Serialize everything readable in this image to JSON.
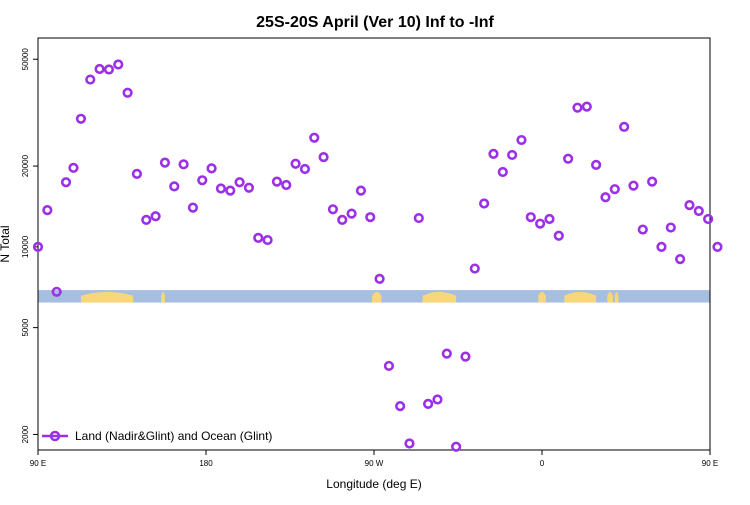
{
  "chart_data": {
    "type": "scatter",
    "title": "25S-20S April (Ver 10)   Inf to -Inf",
    "xlabel": "Longitude (deg E)",
    "ylabel": "N Total",
    "x_axis": {
      "range": [
        90,
        450
      ],
      "ticks": [
        {
          "value": 90,
          "label": "90 E"
        },
        {
          "value": 180,
          "label": "180"
        },
        {
          "value": 270,
          "label": "90 W"
        },
        {
          "value": 360,
          "label": "0"
        },
        {
          "value": 450,
          "label": "90 E"
        },
        {
          "value": 540,
          "label": "180"
        }
      ]
    },
    "y_axis": {
      "scale": "log",
      "range": [
        1750,
        60000
      ],
      "ticks": [
        {
          "value": 2000,
          "label": "2000"
        },
        {
          "value": 5000,
          "label": "5000"
        },
        {
          "value": 10000,
          "label": "10000"
        },
        {
          "value": 20000,
          "label": "20000"
        },
        {
          "value": 50000,
          "label": "50000"
        }
      ]
    },
    "grid": false,
    "legend": {
      "position": "bottom-left",
      "entries": [
        "Land (Nadir&Glint) and Ocean (Glint)"
      ]
    },
    "colors": {
      "points": "#9b30e8",
      "land": "#f8d67a",
      "ocean": "#a6bedf"
    },
    "land_ocean_strip": {
      "y_range": [
        6200,
        6900
      ],
      "land_segments": [
        [
          113,
          141
        ],
        [
          156,
          158
        ],
        [
          269,
          274
        ],
        [
          296,
          314
        ],
        [
          358,
          362
        ],
        [
          372,
          389
        ],
        [
          395,
          398
        ],
        [
          399,
          401
        ],
        [
          480,
          500
        ],
        [
          534,
          548
        ]
      ]
    },
    "series": [
      {
        "name": "Land (Nadir&Glint) and Ocean (Glint)",
        "points": [
          [
            90,
            10000
          ],
          [
            95,
            13700
          ],
          [
            100,
            6800
          ],
          [
            105,
            17400
          ],
          [
            109,
            19700
          ],
          [
            113,
            30000
          ],
          [
            118,
            42000
          ],
          [
            123,
            46000
          ],
          [
            128,
            45800
          ],
          [
            133,
            47800
          ],
          [
            138,
            37500
          ],
          [
            143,
            18700
          ],
          [
            148,
            12600
          ],
          [
            153,
            13000
          ],
          [
            158,
            20600
          ],
          [
            163,
            16800
          ],
          [
            168,
            20300
          ],
          [
            173,
            14000
          ],
          [
            178,
            17700
          ],
          [
            183,
            19600
          ],
          [
            188,
            16500
          ],
          [
            193,
            16200
          ],
          [
            198,
            17400
          ],
          [
            203,
            16600
          ],
          [
            208,
            10800
          ],
          [
            213,
            10600
          ],
          [
            218,
            17500
          ],
          [
            223,
            17000
          ],
          [
            228,
            20400
          ],
          [
            233,
            19500
          ],
          [
            238,
            25500
          ],
          [
            243,
            21600
          ],
          [
            248,
            13800
          ],
          [
            253,
            12600
          ],
          [
            258,
            13300
          ],
          [
            263,
            16200
          ],
          [
            268,
            12900
          ],
          [
            273,
            7600
          ],
          [
            278,
            3600
          ],
          [
            284,
            2550
          ],
          [
            289,
            1850
          ],
          [
            294,
            12800
          ],
          [
            299,
            2600
          ],
          [
            304,
            2700
          ],
          [
            309,
            4000
          ],
          [
            314,
            1800
          ],
          [
            319,
            3900
          ],
          [
            324,
            8300
          ],
          [
            329,
            14500
          ],
          [
            334,
            22200
          ],
          [
            339,
            19000
          ],
          [
            344,
            22000
          ],
          [
            349,
            25000
          ],
          [
            354,
            12900
          ],
          [
            359,
            12200
          ],
          [
            364,
            12700
          ],
          [
            369,
            11000
          ],
          [
            374,
            21300
          ],
          [
            379,
            33000
          ],
          [
            384,
            33300
          ],
          [
            389,
            20200
          ],
          [
            394,
            15300
          ],
          [
            399,
            16400
          ],
          [
            404,
            28000
          ],
          [
            409,
            16900
          ],
          [
            414,
            11600
          ],
          [
            419,
            17500
          ],
          [
            424,
            10000
          ],
          [
            429,
            11800
          ],
          [
            434,
            9000
          ],
          [
            439,
            14300
          ],
          [
            444,
            13600
          ],
          [
            449,
            12700
          ],
          [
            454,
            10000
          ]
        ]
      }
    ]
  }
}
